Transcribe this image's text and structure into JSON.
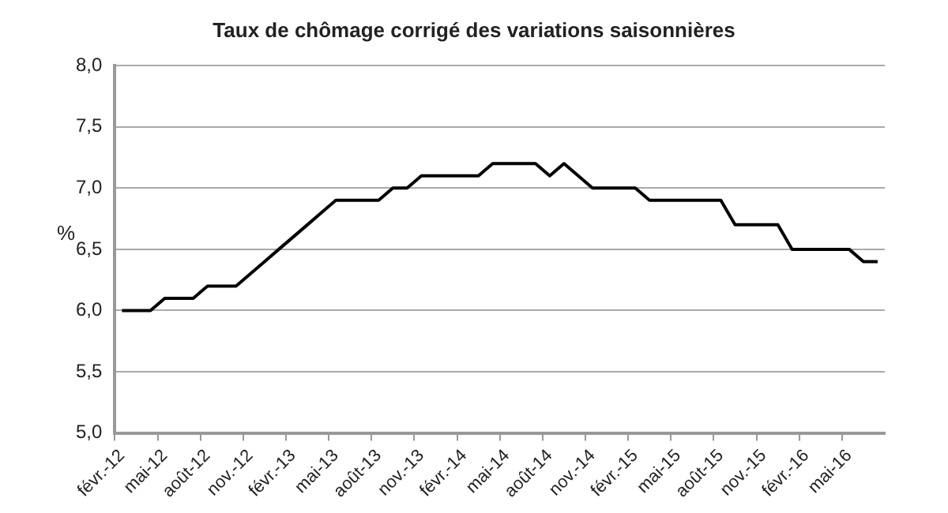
{
  "chart_data": {
    "type": "line",
    "title": "Taux de chômage corrigé des variations saisonnières",
    "ylabel": "%",
    "categories": [
      "févr.-12",
      null,
      null,
      "mai-12",
      null,
      null,
      "août-12",
      null,
      null,
      "nov.-12",
      null,
      null,
      "févr.-13",
      null,
      null,
      "mai-13",
      null,
      null,
      "août-13",
      null,
      null,
      "nov.-13",
      null,
      null,
      "févr.-14",
      null,
      null,
      "mai-14",
      null,
      null,
      "août-14",
      null,
      null,
      "nov.-14",
      null,
      null,
      "févr.-15",
      null,
      null,
      "mai-15",
      null,
      null,
      "août-15",
      null,
      null,
      "nov.-15",
      null,
      null,
      "févr.-16",
      null,
      null,
      "mai-16",
      null,
      null
    ],
    "series": [
      {
        "color": "#000000",
        "values": [
          6.0,
          6.0,
          6.0,
          6.1,
          6.1,
          6.1,
          6.2,
          6.2,
          6.2,
          6.3,
          6.4,
          6.5,
          6.6,
          6.7,
          6.8,
          6.9,
          6.9,
          6.9,
          6.9,
          7.0,
          7.0,
          7.1,
          7.1,
          7.1,
          7.1,
          7.1,
          7.2,
          7.2,
          7.2,
          7.2,
          7.1,
          7.2,
          7.1,
          7.0,
          7.0,
          7.0,
          7.0,
          6.9,
          6.9,
          6.9,
          6.9,
          6.9,
          6.9,
          6.7,
          6.7,
          6.7,
          6.7,
          6.5,
          6.5,
          6.5,
          6.5,
          6.5,
          6.4,
          6.4
        ]
      }
    ],
    "ylim": [
      5.0,
      8.0
    ],
    "yticks": [
      {
        "value": 5.0,
        "label": "5,0"
      },
      {
        "value": 5.5,
        "label": "5,5"
      },
      {
        "value": 6.0,
        "label": "6,0"
      },
      {
        "value": 6.5,
        "label": "6,5"
      },
      {
        "value": 7.0,
        "label": "7,0"
      },
      {
        "value": 7.5,
        "label": "7,5"
      },
      {
        "value": 8.0,
        "label": "8,0"
      }
    ],
    "grid": "y",
    "legend": false,
    "marker": "none",
    "line_style": "solid"
  }
}
